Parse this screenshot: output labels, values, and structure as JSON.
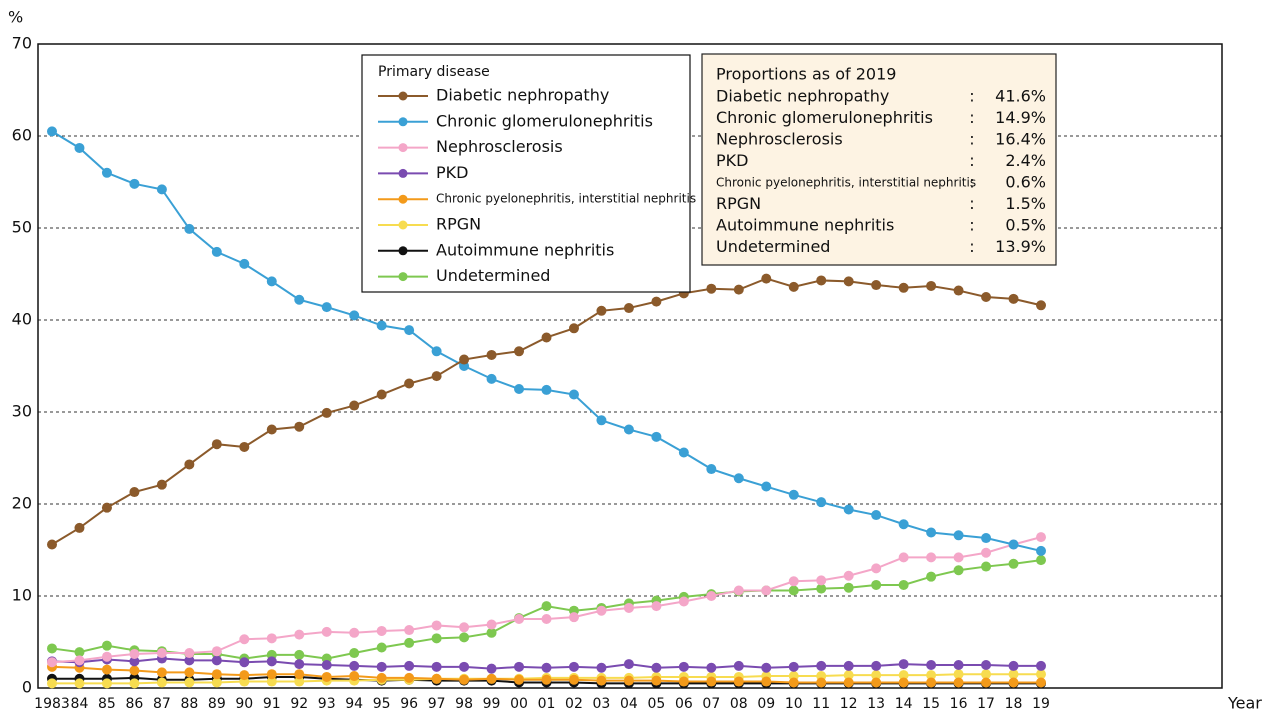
{
  "chart_data": {
    "type": "line",
    "y_label": "%",
    "x_label": "Year",
    "ylim": [
      0,
      70
    ],
    "yticks": [
      0,
      10,
      20,
      30,
      40,
      50,
      60,
      70
    ],
    "grid": true,
    "legend": {
      "title": "Primary disease",
      "position": "top-center"
    },
    "categories": [
      "1983",
      "84",
      "85",
      "86",
      "87",
      "88",
      "89",
      "90",
      "91",
      "92",
      "93",
      "94",
      "95",
      "96",
      "97",
      "98",
      "99",
      "00",
      "01",
      "02",
      "03",
      "04",
      "05",
      "06",
      "07",
      "08",
      "09",
      "10",
      "11",
      "12",
      "13",
      "14",
      "15",
      "16",
      "17",
      "18",
      "19"
    ],
    "series": [
      {
        "name": "Diabetic nephropathy",
        "color": "#8b5a2b",
        "values": [
          15.6,
          17.4,
          19.6,
          21.3,
          22.1,
          24.3,
          26.5,
          26.2,
          28.1,
          28.4,
          29.9,
          30.7,
          31.9,
          33.1,
          33.9,
          35.7,
          36.2,
          36.6,
          38.1,
          39.1,
          41.0,
          41.3,
          42.0,
          42.9,
          43.4,
          43.3,
          44.5,
          43.6,
          44.3,
          44.2,
          43.8,
          43.5,
          43.7,
          43.2,
          42.5,
          42.3,
          41.6
        ]
      },
      {
        "name": "Chronic glomerulonephritis",
        "color": "#3aa0d5",
        "values": [
          60.5,
          58.7,
          56.0,
          54.8,
          54.2,
          49.9,
          47.4,
          46.1,
          44.2,
          42.2,
          41.4,
          40.5,
          39.4,
          38.9,
          36.6,
          35.0,
          33.6,
          32.5,
          32.4,
          31.9,
          29.1,
          28.1,
          27.3,
          25.6,
          23.8,
          22.8,
          21.9,
          21.0,
          20.2,
          19.4,
          18.8,
          17.8,
          16.9,
          16.6,
          16.3,
          15.6,
          14.9
        ]
      },
      {
        "name": "Nephrosclerosis",
        "color": "#f4a6c8",
        "values": [
          2.8,
          3.0,
          3.4,
          3.7,
          3.8,
          3.8,
          4.0,
          5.3,
          5.4,
          5.8,
          6.1,
          6.0,
          6.2,
          6.3,
          6.8,
          6.6,
          6.9,
          7.5,
          7.5,
          7.7,
          8.4,
          8.7,
          8.9,
          9.4,
          10.0,
          10.6,
          10.6,
          11.6,
          11.7,
          12.2,
          13.0,
          14.2,
          14.2,
          14.2,
          14.7,
          15.6,
          16.4
        ]
      },
      {
        "name": "PKD",
        "color": "#7a4bb0",
        "values": [
          2.9,
          2.8,
          3.1,
          2.9,
          3.2,
          3.0,
          3.0,
          2.8,
          2.9,
          2.6,
          2.5,
          2.4,
          2.3,
          2.4,
          2.3,
          2.3,
          2.1,
          2.3,
          2.2,
          2.3,
          2.2,
          2.6,
          2.2,
          2.3,
          2.2,
          2.4,
          2.2,
          2.3,
          2.4,
          2.4,
          2.4,
          2.6,
          2.5,
          2.5,
          2.5,
          2.4,
          2.4
        ]
      },
      {
        "name": "Chronic pyelonephritis, interstitial nephritis",
        "color": "#f39a1a",
        "values": [
          2.3,
          2.2,
          2.0,
          1.9,
          1.7,
          1.7,
          1.5,
          1.4,
          1.5,
          1.5,
          1.2,
          1.3,
          1.1,
          1.1,
          1.0,
          0.9,
          1.0,
          0.9,
          0.9,
          0.9,
          0.8,
          0.8,
          0.8,
          0.7,
          0.7,
          0.7,
          0.7,
          0.6,
          0.6,
          0.6,
          0.6,
          0.6,
          0.6,
          0.6,
          0.6,
          0.6,
          0.6
        ]
      },
      {
        "name": "RPGN",
        "color": "#f7dc50",
        "values": [
          0.5,
          0.5,
          0.5,
          0.5,
          0.6,
          0.6,
          0.6,
          0.7,
          0.7,
          0.7,
          0.8,
          0.8,
          0.9,
          0.9,
          1.0,
          1.0,
          1.0,
          1.0,
          1.1,
          1.1,
          1.1,
          1.1,
          1.2,
          1.2,
          1.2,
          1.2,
          1.3,
          1.3,
          1.3,
          1.4,
          1.4,
          1.4,
          1.4,
          1.5,
          1.5,
          1.5,
          1.5
        ]
      },
      {
        "name": "Autoimmune nephritis",
        "color": "#111111",
        "values": [
          1.0,
          1.0,
          1.0,
          1.1,
          0.9,
          0.9,
          1.0,
          1.0,
          1.2,
          1.2,
          1.0,
          0.9,
          0.8,
          0.9,
          0.8,
          0.8,
          0.8,
          0.6,
          0.6,
          0.6,
          0.5,
          0.5,
          0.5,
          0.5,
          0.5,
          0.5,
          0.5,
          0.5,
          0.5,
          0.5,
          0.5,
          0.5,
          0.5,
          0.5,
          0.5,
          0.5,
          0.5
        ]
      },
      {
        "name": "Undetermined",
        "color": "#7ec850",
        "values": [
          4.3,
          3.9,
          4.6,
          4.1,
          4.0,
          3.7,
          3.7,
          3.2,
          3.6,
          3.6,
          3.2,
          3.8,
          4.4,
          4.9,
          5.4,
          5.5,
          6.0,
          7.6,
          8.9,
          8.4,
          8.7,
          9.2,
          9.5,
          9.9,
          10.2,
          10.5,
          10.6,
          10.6,
          10.8,
          10.9,
          11.2,
          11.2,
          12.1,
          12.8,
          13.2,
          13.5,
          13.9
        ]
      }
    ],
    "annotation": {
      "title": "Proportions as of 2019",
      "separator": ":",
      "rows": [
        {
          "name": "Diabetic nephropathy",
          "value": "41.6%"
        },
        {
          "name": "Chronic glomerulonephritis",
          "value": "14.9%"
        },
        {
          "name": "Nephrosclerosis",
          "value": "16.4%"
        },
        {
          "name": "PKD",
          "value": "2.4%"
        },
        {
          "name": "Chronic pyelonephritis, interstitial nephritis",
          "value": "0.6%"
        },
        {
          "name": "RPGN",
          "value": "1.5%"
        },
        {
          "name": "Autoimmune nephritis",
          "value": "0.5%"
        },
        {
          "name": "Undetermined",
          "value": "13.9%"
        }
      ]
    }
  }
}
